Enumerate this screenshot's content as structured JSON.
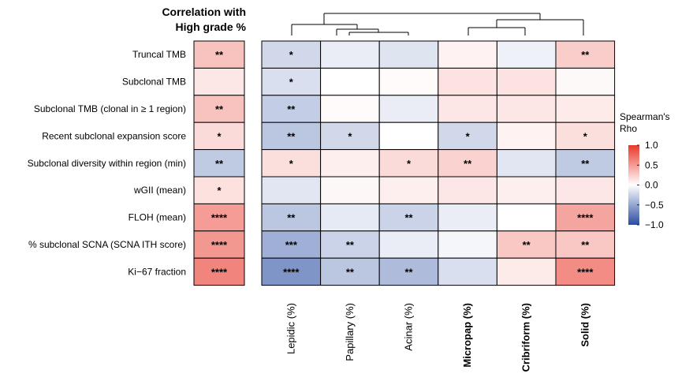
{
  "chart_data": {
    "type": "heatmap",
    "left_title": [
      "Correlation with",
      "High grade %"
    ],
    "rows": [
      "Truncal TMB",
      "Subclonal TMB",
      "Subclonal TMB (clonal in ≥ 1 region)",
      "Recent subclonal expansion score",
      "Subclonal diversity within region (min)",
      "wGII (mean)",
      "FLOH (mean)",
      "% subclonal SCNA (SCNA ITH score)",
      "Ki−67 fraction"
    ],
    "columns": [
      "Lepidic (%)",
      "Papillary (%)",
      "Acinar (%)",
      "Micropap (%)",
      "Cribriform (%)",
      "Solid (%)"
    ],
    "bold_columns": [
      "Micropap (%)",
      "Cribriform (%)",
      "Solid (%)"
    ],
    "high_grade": {
      "values": [
        0.3,
        0.12,
        0.3,
        0.18,
        -0.3,
        0.15,
        0.5,
        0.52,
        0.62
      ],
      "stars": [
        "**",
        "",
        "**",
        "*",
        "**",
        "*",
        "****",
        "****",
        "****"
      ]
    },
    "values": [
      [
        -0.22,
        -0.1,
        -0.15,
        0.06,
        -0.08,
        0.25
      ],
      [
        -0.18,
        0.0,
        0.02,
        0.14,
        0.14,
        0.03
      ],
      [
        -0.28,
        0.02,
        -0.1,
        0.12,
        0.12,
        0.1
      ],
      [
        -0.32,
        -0.22,
        0.0,
        -0.22,
        0.06,
        0.16
      ],
      [
        0.16,
        0.08,
        0.18,
        0.22,
        -0.14,
        -0.3
      ],
      [
        -0.14,
        0.04,
        0.08,
        0.12,
        0.08,
        0.12
      ],
      [
        -0.32,
        -0.12,
        -0.25,
        -0.1,
        0.0,
        0.45
      ],
      [
        -0.45,
        -0.25,
        -0.1,
        -0.05,
        0.28,
        0.28
      ],
      [
        -0.6,
        -0.32,
        -0.38,
        -0.18,
        0.1,
        0.58
      ]
    ],
    "stars": [
      [
        "*",
        "",
        "",
        "",
        "",
        "**"
      ],
      [
        "*",
        "",
        "",
        "",
        "",
        ""
      ],
      [
        "**",
        "",
        "",
        "",
        "",
        ""
      ],
      [
        "**",
        "*",
        "",
        "*",
        "",
        "*"
      ],
      [
        "*",
        "",
        "*",
        "**",
        "",
        "**"
      ],
      [
        "",
        "",
        "",
        "",
        "",
        ""
      ],
      [
        "**",
        "",
        "**",
        "",
        "",
        "****"
      ],
      [
        "***",
        "**",
        "",
        "",
        "**",
        "**"
      ],
      [
        "****",
        "**",
        "**",
        "",
        "",
        "****"
      ]
    ],
    "legend": {
      "title": [
        "Spearman's",
        "Rho"
      ],
      "ticks": [
        "1.0",
        "0.5",
        "0.0",
        "−0.5",
        "−1.0"
      ],
      "tick_values": [
        1.0,
        0.5,
        0.0,
        -0.5,
        -1.0
      ],
      "colors": {
        "high": "#e8382b",
        "mid": "#ffffff",
        "low": "#2a4da1"
      }
    }
  }
}
